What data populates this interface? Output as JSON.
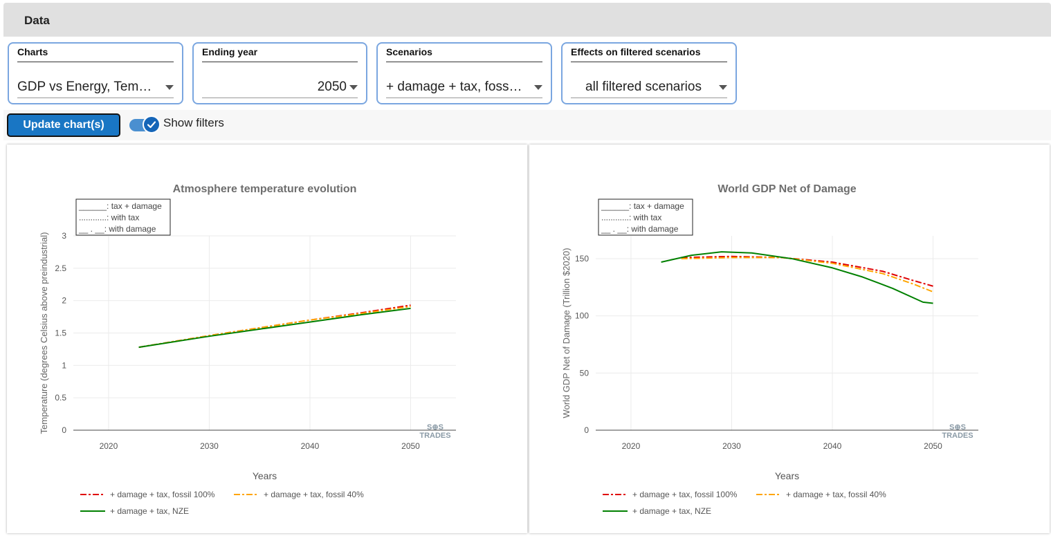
{
  "header": {
    "title": "Data"
  },
  "filters": [
    {
      "label": "Charts",
      "value": "GDP vs Energy, Tem…",
      "align": "left"
    },
    {
      "label": "Ending year",
      "value": "2050",
      "align": "right"
    },
    {
      "label": "Scenarios",
      "value": "+ damage + tax, foss…",
      "align": "left"
    },
    {
      "label": "Effects on filtered scenarios",
      "value": "all filtered scenarios",
      "align": "center"
    }
  ],
  "actions": {
    "update_label": "Update chart(s)",
    "show_filters_label": "Show filters",
    "show_filters_checked": true
  },
  "colors": {
    "fossil100": "#e00000",
    "fossil40": "#ffa500",
    "nze": "#008000",
    "accent": "#1976c4"
  },
  "logo": {
    "line1": "S⊕S",
    "line2": "TRADES"
  },
  "chart_data": [
    {
      "type": "line",
      "title": "Atmosphere temperature evolution",
      "xlabel": "Years",
      "ylabel": "Temperature (degrees Celsius above preindustrial)",
      "xlim": [
        2016.5,
        2054.5
      ],
      "ylim": [
        0,
        3
      ],
      "xticks": [
        2020,
        2030,
        2040,
        2050
      ],
      "yticks": [
        0,
        0.5,
        1,
        1.5,
        2,
        2.5,
        3
      ],
      "ytick_labels": [
        "0",
        "0.5",
        "1",
        "1.5",
        "2",
        "2.5",
        "3"
      ],
      "grid": true,
      "legend_box": [
        "______: tax + damage",
        "............: with tax",
        "__ . __: with damage"
      ],
      "legend_position": "bottom",
      "series": [
        {
          "name": "+ damage + tax, fossil 100%",
          "color_key": "fossil100",
          "dash": "dashdot",
          "x": [
            2023,
            2030,
            2035,
            2040,
            2045,
            2050
          ],
          "y": [
            1.28,
            1.46,
            1.58,
            1.7,
            1.81,
            1.93
          ]
        },
        {
          "name": "+ damage + tax, fossil 40%",
          "color_key": "fossil40",
          "dash": "dashdot",
          "x": [
            2023,
            2030,
            2035,
            2040,
            2045,
            2050
          ],
          "y": [
            1.28,
            1.46,
            1.58,
            1.7,
            1.8,
            1.91
          ]
        },
        {
          "name": "+ damage + tax, NZE",
          "color_key": "nze",
          "dash": "solid",
          "x": [
            2023,
            2030,
            2035,
            2040,
            2045,
            2050
          ],
          "y": [
            1.28,
            1.45,
            1.56,
            1.67,
            1.78,
            1.88
          ]
        }
      ]
    },
    {
      "type": "line",
      "title": "World GDP Net of Damage",
      "xlabel": "Years",
      "ylabel": "World GDP Net of Damage (Trillion $2020)",
      "xlim": [
        2016.5,
        2054.5
      ],
      "ylim": [
        0,
        170
      ],
      "xticks": [
        2020,
        2030,
        2040,
        2050
      ],
      "yticks": [
        0,
        50,
        100,
        150
      ],
      "ytick_labels": [
        "0",
        "50",
        "100",
        "150"
      ],
      "grid": true,
      "legend_box": [
        "______: tax + damage",
        "............: with tax",
        "__ . __: with damage"
      ],
      "legend_position": "bottom",
      "series": [
        {
          "name": "+ damage + tax, fossil 100%",
          "color_key": "fossil100",
          "dash": "dashdot",
          "x": [
            2025,
            2030,
            2035,
            2040,
            2045,
            2048,
            2050
          ],
          "y": [
            151,
            152,
            151,
            147,
            139,
            131,
            126
          ]
        },
        {
          "name": "+ damage + tax, fossil 40%",
          "color_key": "fossil40",
          "dash": "dashdot",
          "x": [
            2025,
            2030,
            2035,
            2040,
            2045,
            2048,
            2050
          ],
          "y": [
            150,
            151,
            151,
            146,
            137,
            128,
            121
          ]
        },
        {
          "name": "+ damage + tax, NZE",
          "color_key": "nze",
          "dash": "solid",
          "x": [
            2023,
            2026,
            2029,
            2032,
            2036,
            2040,
            2043,
            2046,
            2049,
            2050
          ],
          "y": [
            147,
            153,
            156,
            155,
            150,
            142,
            134,
            124,
            112,
            111
          ]
        }
      ]
    }
  ]
}
